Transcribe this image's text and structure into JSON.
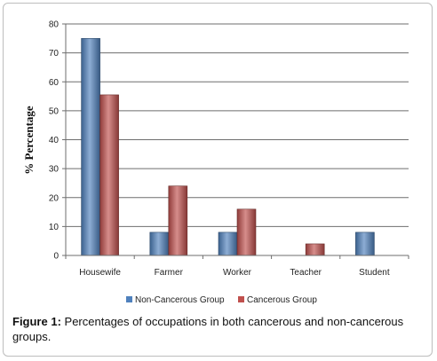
{
  "chart_data": {
    "type": "bar",
    "categories": [
      "Housewife",
      "Farmer",
      "Worker",
      "Teacher",
      "Student"
    ],
    "series": [
      {
        "name": "Non-Cancerous Group",
        "values": [
          75,
          8,
          8,
          0,
          8
        ],
        "color": "#4f81bd"
      },
      {
        "name": "Cancerous Group",
        "values": [
          55.5,
          24,
          16,
          4,
          0
        ],
        "color": "#c0504d"
      }
    ],
    "ylabel": "% Percentage",
    "ylim": [
      0,
      80
    ],
    "yticks": [
      0,
      10,
      20,
      30,
      40,
      50,
      60,
      70,
      80
    ],
    "grid": true,
    "legend": "bottom"
  },
  "caption": {
    "label": "Figure 1:",
    "text": "Percentages of occupations in both cancerous and non-cancerous groups."
  }
}
